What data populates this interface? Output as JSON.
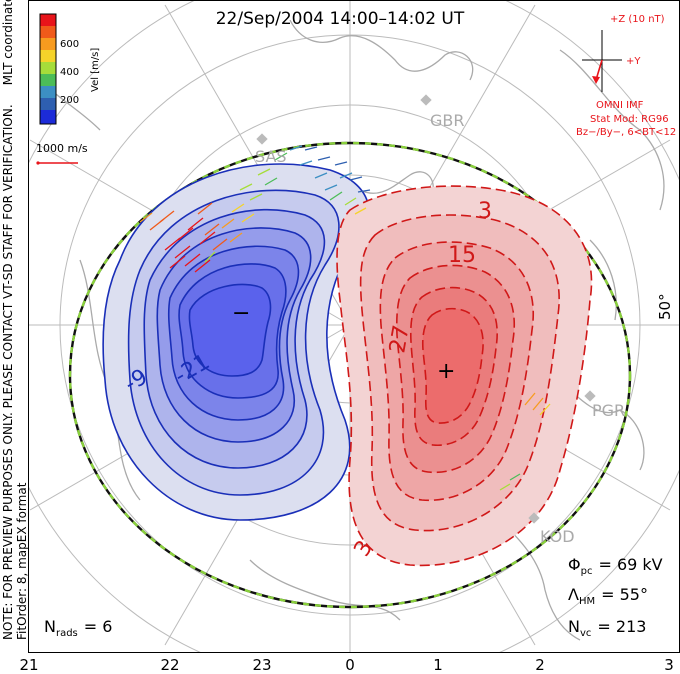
{
  "title": "22/Sep/2004  14:00–14:02  UT",
  "coord_label": "MLT coordinates",
  "colorbar": {
    "label": "Vel [m/s]",
    "ticks": [
      "600",
      "400",
      "200"
    ],
    "colors": [
      "#e8141a",
      "#f05a1a",
      "#f79b1f",
      "#f5d32a",
      "#a6dd3a",
      "#4cbd58",
      "#3c8fc3",
      "#2e5fb0",
      "#1c2bd8"
    ]
  },
  "vector_scale": {
    "label": "1000 m/s",
    "color": "#e8141a"
  },
  "imf": {
    "axis_z": "+Z (10 nT)",
    "axis_y": "+Y",
    "source": "OMNI IMF",
    "model": "Stat Mod: RG96",
    "condition": "Bz−/By−, 6<BT<12",
    "color": "#e8141a"
  },
  "stations": [
    "GBR",
    "SAS",
    "PGR",
    "KOD"
  ],
  "lat_label": "50°",
  "contours": {
    "negative_labels": [
      "-21",
      "-9"
    ],
    "positive_labels": [
      "3",
      "15",
      "27",
      "3"
    ],
    "min_marker": "−",
    "max_marker": "+",
    "neg_color": "#1a2fb8",
    "pos_color": "#d01818"
  },
  "stats": {
    "phi_pc": {
      "symbol": "Φ",
      "sub": "pc",
      "value": "= 69 kV"
    },
    "lambda_hm": {
      "symbol": "Λ",
      "sub": "HM",
      "value": "= 55°"
    },
    "n_vc": {
      "symbol": "N",
      "sub": "vc",
      "value": "= 213"
    },
    "n_rads": {
      "symbol": "N",
      "sub": "rads",
      "value": "= 6"
    }
  },
  "x_ticks": [
    "21",
    "22",
    "23",
    "0",
    "1",
    "2",
    "3"
  ],
  "side_note": {
    "line1": "NOTE: FOR PREVIEW PURPOSES ONLY. PLEASE CONTACT VT-SD STAFF FOR VERIFICATION.",
    "line2": "FitOrder: 8, mapEX format"
  }
}
